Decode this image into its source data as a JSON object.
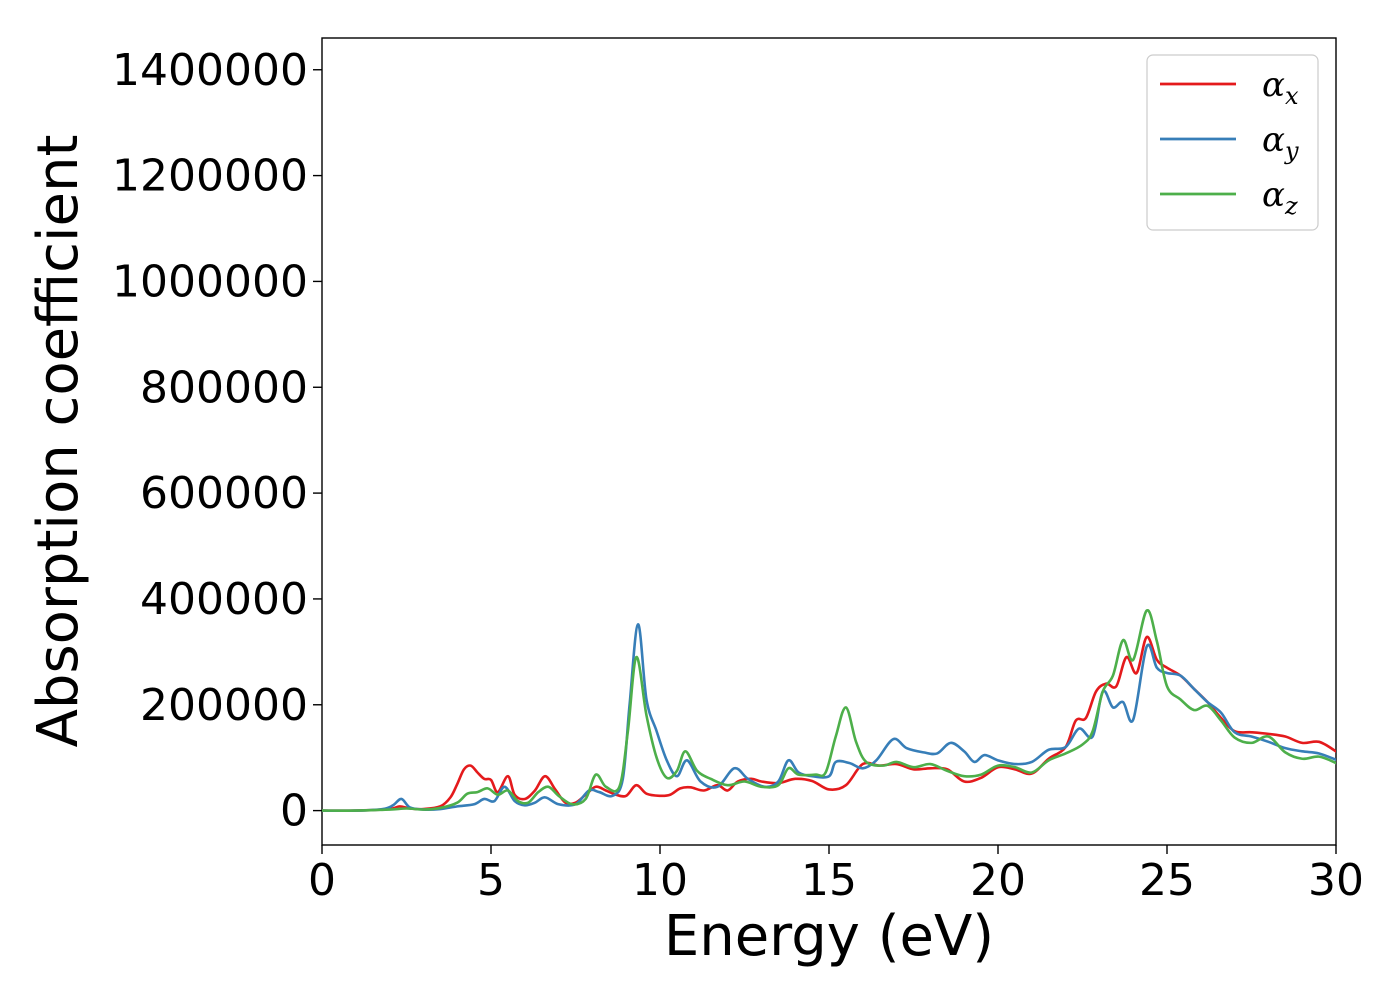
{
  "chart_data": {
    "type": "line",
    "title": "",
    "xlabel": "Energy (eV)",
    "ylabel": "Absorption coefficient",
    "xlim": [
      0,
      30
    ],
    "ylim": [
      -65000,
      1460000
    ],
    "xticks": [
      0,
      5,
      10,
      15,
      20,
      25,
      30
    ],
    "xtick_labels": [
      "0",
      "5",
      "10",
      "15",
      "20",
      "25",
      "30"
    ],
    "yticks": [
      0,
      200000,
      400000,
      600000,
      800000,
      1000000,
      1200000,
      1400000
    ],
    "ytick_labels": [
      "0",
      "200000",
      "400000",
      "600000",
      "800000",
      "1000000",
      "1200000",
      "1400000"
    ],
    "grid": false,
    "legend_position": "top-right",
    "series": [
      {
        "name": "α_x",
        "legend_symbol": "α",
        "legend_sub": "x",
        "color": "#e41a1c",
        "points": [
          [
            0,
            0
          ],
          [
            1,
            0
          ],
          [
            2,
            3000
          ],
          [
            2.3,
            8000
          ],
          [
            2.6,
            4000
          ],
          [
            3,
            3000
          ],
          [
            3.5,
            8000
          ],
          [
            3.8,
            25000
          ],
          [
            4,
            50000
          ],
          [
            4.2,
            78000
          ],
          [
            4.4,
            85000
          ],
          [
            4.6,
            72000
          ],
          [
            4.8,
            60000
          ],
          [
            5,
            58000
          ],
          [
            5.2,
            35000
          ],
          [
            5.5,
            65000
          ],
          [
            5.7,
            30000
          ],
          [
            6,
            22000
          ],
          [
            6.3,
            38000
          ],
          [
            6.6,
            65000
          ],
          [
            6.9,
            40000
          ],
          [
            7.2,
            15000
          ],
          [
            7.5,
            15000
          ],
          [
            7.8,
            30000
          ],
          [
            8.1,
            45000
          ],
          [
            8.4,
            38000
          ],
          [
            8.7,
            30000
          ],
          [
            9,
            28000
          ],
          [
            9.3,
            48000
          ],
          [
            9.6,
            32000
          ],
          [
            10,
            28000
          ],
          [
            10.3,
            30000
          ],
          [
            10.6,
            42000
          ],
          [
            10.9,
            44000
          ],
          [
            11.3,
            38000
          ],
          [
            11.7,
            48000
          ],
          [
            12,
            38000
          ],
          [
            12.3,
            55000
          ],
          [
            12.7,
            60000
          ],
          [
            13,
            55000
          ],
          [
            13.5,
            52000
          ],
          [
            14,
            60000
          ],
          [
            14.5,
            56000
          ],
          [
            15,
            40000
          ],
          [
            15.5,
            48000
          ],
          [
            16,
            88000
          ],
          [
            16.5,
            85000
          ],
          [
            17,
            88000
          ],
          [
            17.5,
            78000
          ],
          [
            18,
            80000
          ],
          [
            18.5,
            78000
          ],
          [
            19,
            55000
          ],
          [
            19.5,
            62000
          ],
          [
            20,
            82000
          ],
          [
            20.5,
            78000
          ],
          [
            21,
            70000
          ],
          [
            21.5,
            98000
          ],
          [
            22,
            120000
          ],
          [
            22.3,
            170000
          ],
          [
            22.6,
            175000
          ],
          [
            22.9,
            225000
          ],
          [
            23.2,
            240000
          ],
          [
            23.5,
            235000
          ],
          [
            23.8,
            290000
          ],
          [
            24.1,
            260000
          ],
          [
            24.4,
            328000
          ],
          [
            24.7,
            285000
          ],
          [
            25,
            270000
          ],
          [
            25.4,
            255000
          ],
          [
            25.8,
            230000
          ],
          [
            26.2,
            205000
          ],
          [
            26.6,
            175000
          ],
          [
            27,
            150000
          ],
          [
            27.5,
            148000
          ],
          [
            28,
            145000
          ],
          [
            28.5,
            140000
          ],
          [
            29,
            128000
          ],
          [
            29.5,
            130000
          ],
          [
            30,
            112000
          ]
        ]
      },
      {
        "name": "α_y",
        "legend_symbol": "α",
        "legend_sub": "y",
        "color": "#377eb8",
        "points": [
          [
            0,
            0
          ],
          [
            1,
            0
          ],
          [
            1.8,
            3000
          ],
          [
            2.1,
            10000
          ],
          [
            2.35,
            22000
          ],
          [
            2.6,
            6000
          ],
          [
            3,
            2000
          ],
          [
            3.5,
            3000
          ],
          [
            4,
            8000
          ],
          [
            4.5,
            12000
          ],
          [
            4.8,
            22000
          ],
          [
            5.1,
            18000
          ],
          [
            5.4,
            45000
          ],
          [
            5.7,
            18000
          ],
          [
            6,
            10000
          ],
          [
            6.3,
            15000
          ],
          [
            6.6,
            25000
          ],
          [
            7,
            12000
          ],
          [
            7.5,
            12000
          ],
          [
            7.9,
            38000
          ],
          [
            8.2,
            35000
          ],
          [
            8.6,
            28000
          ],
          [
            8.9,
            60000
          ],
          [
            9.1,
            200000
          ],
          [
            9.35,
            352000
          ],
          [
            9.6,
            210000
          ],
          [
            9.9,
            150000
          ],
          [
            10.2,
            95000
          ],
          [
            10.5,
            65000
          ],
          [
            10.8,
            95000
          ],
          [
            11.2,
            55000
          ],
          [
            11.7,
            45000
          ],
          [
            12.2,
            80000
          ],
          [
            12.6,
            60000
          ],
          [
            13.1,
            45000
          ],
          [
            13.5,
            55000
          ],
          [
            13.8,
            95000
          ],
          [
            14.1,
            72000
          ],
          [
            14.5,
            65000
          ],
          [
            15,
            65000
          ],
          [
            15.2,
            92000
          ],
          [
            15.6,
            90000
          ],
          [
            16,
            80000
          ],
          [
            16.4,
            95000
          ],
          [
            16.9,
            135000
          ],
          [
            17.3,
            118000
          ],
          [
            17.8,
            110000
          ],
          [
            18.2,
            108000
          ],
          [
            18.6,
            128000
          ],
          [
            19,
            112000
          ],
          [
            19.3,
            92000
          ],
          [
            19.6,
            105000
          ],
          [
            20,
            95000
          ],
          [
            20.5,
            88000
          ],
          [
            21,
            92000
          ],
          [
            21.5,
            115000
          ],
          [
            22,
            120000
          ],
          [
            22.4,
            155000
          ],
          [
            22.8,
            140000
          ],
          [
            23.1,
            225000
          ],
          [
            23.4,
            195000
          ],
          [
            23.7,
            205000
          ],
          [
            24,
            172000
          ],
          [
            24.4,
            310000
          ],
          [
            24.7,
            270000
          ],
          [
            25,
            260000
          ],
          [
            25.4,
            255000
          ],
          [
            25.8,
            230000
          ],
          [
            26.2,
            205000
          ],
          [
            26.6,
            185000
          ],
          [
            27,
            148000
          ],
          [
            27.5,
            140000
          ],
          [
            28,
            130000
          ],
          [
            28.5,
            118000
          ],
          [
            29,
            112000
          ],
          [
            29.5,
            108000
          ],
          [
            30,
            96000
          ]
        ]
      },
      {
        "name": "α_z",
        "legend_symbol": "α",
        "legend_sub": "z",
        "color": "#4daf4a",
        "points": [
          [
            0,
            0
          ],
          [
            1,
            0
          ],
          [
            2,
            2000
          ],
          [
            2.5,
            4000
          ],
          [
            3,
            2000
          ],
          [
            3.5,
            5000
          ],
          [
            4,
            15000
          ],
          [
            4.3,
            32000
          ],
          [
            4.6,
            35000
          ],
          [
            4.9,
            42000
          ],
          [
            5.2,
            30000
          ],
          [
            5.5,
            38000
          ],
          [
            5.8,
            18000
          ],
          [
            6.1,
            15000
          ],
          [
            6.4,
            35000
          ],
          [
            6.7,
            45000
          ],
          [
            7,
            28000
          ],
          [
            7.4,
            12000
          ],
          [
            7.8,
            22000
          ],
          [
            8.1,
            68000
          ],
          [
            8.4,
            45000
          ],
          [
            8.8,
            45000
          ],
          [
            9.05,
            150000
          ],
          [
            9.3,
            290000
          ],
          [
            9.6,
            180000
          ],
          [
            9.9,
            100000
          ],
          [
            10.2,
            62000
          ],
          [
            10.5,
            75000
          ],
          [
            10.75,
            112000
          ],
          [
            11.1,
            75000
          ],
          [
            11.5,
            60000
          ],
          [
            12,
            48000
          ],
          [
            12.5,
            55000
          ],
          [
            13,
            45000
          ],
          [
            13.5,
            48000
          ],
          [
            13.8,
            80000
          ],
          [
            14.1,
            68000
          ],
          [
            14.6,
            68000
          ],
          [
            14.9,
            72000
          ],
          [
            15.2,
            140000
          ],
          [
            15.5,
            195000
          ],
          [
            15.8,
            130000
          ],
          [
            16.1,
            92000
          ],
          [
            16.6,
            85000
          ],
          [
            17,
            92000
          ],
          [
            17.5,
            82000
          ],
          [
            18,
            88000
          ],
          [
            18.5,
            75000
          ],
          [
            19,
            65000
          ],
          [
            19.5,
            68000
          ],
          [
            20,
            85000
          ],
          [
            20.5,
            82000
          ],
          [
            21,
            72000
          ],
          [
            21.5,
            95000
          ],
          [
            22,
            108000
          ],
          [
            22.5,
            125000
          ],
          [
            22.8,
            150000
          ],
          [
            23.1,
            225000
          ],
          [
            23.4,
            255000
          ],
          [
            23.7,
            322000
          ],
          [
            24,
            285000
          ],
          [
            24.4,
            378000
          ],
          [
            24.7,
            320000
          ],
          [
            25,
            235000
          ],
          [
            25.4,
            210000
          ],
          [
            25.8,
            190000
          ],
          [
            26.2,
            198000
          ],
          [
            26.6,
            170000
          ],
          [
            27,
            138000
          ],
          [
            27.5,
            128000
          ],
          [
            28,
            140000
          ],
          [
            28.5,
            110000
          ],
          [
            29,
            98000
          ],
          [
            29.5,
            102000
          ],
          [
            30,
            90000
          ]
        ]
      }
    ]
  }
}
